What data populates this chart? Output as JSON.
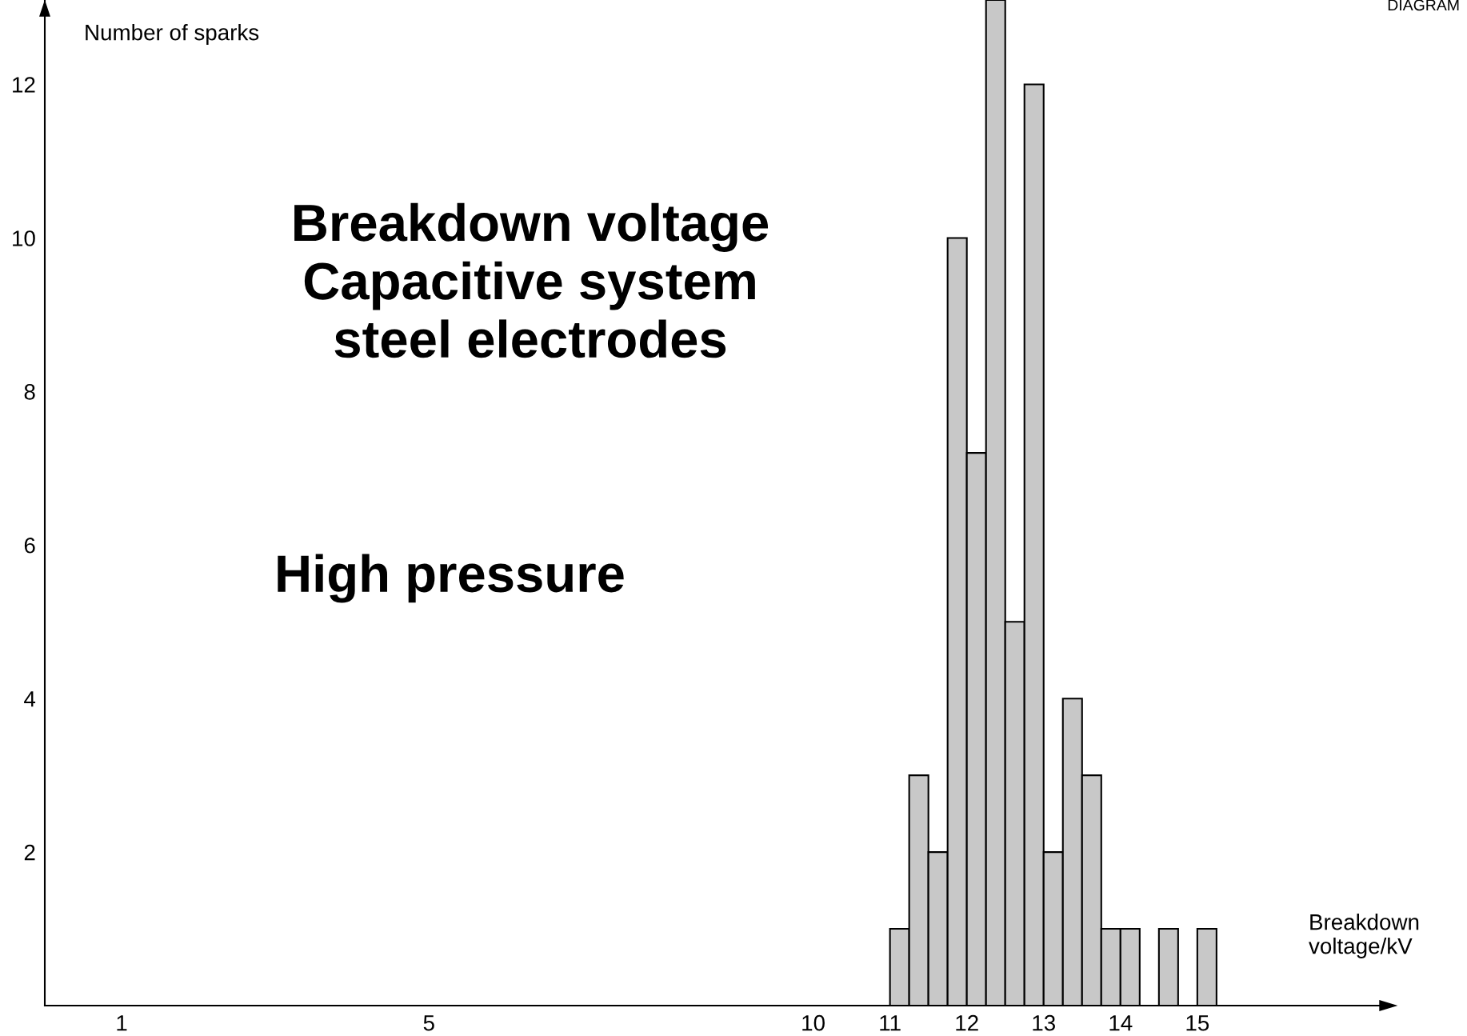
{
  "chart_data": {
    "type": "histogram",
    "ylabel": "Number of sparks",
    "xlabel": "Breakdown\nvoltage/kV",
    "annotations": [
      "Breakdown voltage\nCapacitive system\nsteel electrodes",
      "High pressure",
      "DIAGRAM"
    ],
    "bins": [
      11,
      11.25,
      11.5,
      11.75,
      12,
      12.25,
      12.5,
      12.75,
      13,
      13.25,
      13.5,
      13.75,
      14,
      14.25,
      14.5,
      14.75,
      15,
      15.25
    ],
    "values": [
      1,
      3,
      2,
      10,
      7.2,
      13.1,
      5,
      12,
      2,
      4,
      3,
      1,
      1,
      0,
      1,
      0,
      1
    ],
    "color": "#c8c8c8",
    "xlim": [
      0,
      17.5
    ],
    "ylim": [
      0,
      13.1
    ],
    "xticks": [
      1,
      5,
      10,
      11,
      12,
      13,
      14,
      15
    ],
    "yticks": [
      2,
      4,
      6,
      8,
      10,
      12
    ],
    "grid": false,
    "legend": false
  }
}
